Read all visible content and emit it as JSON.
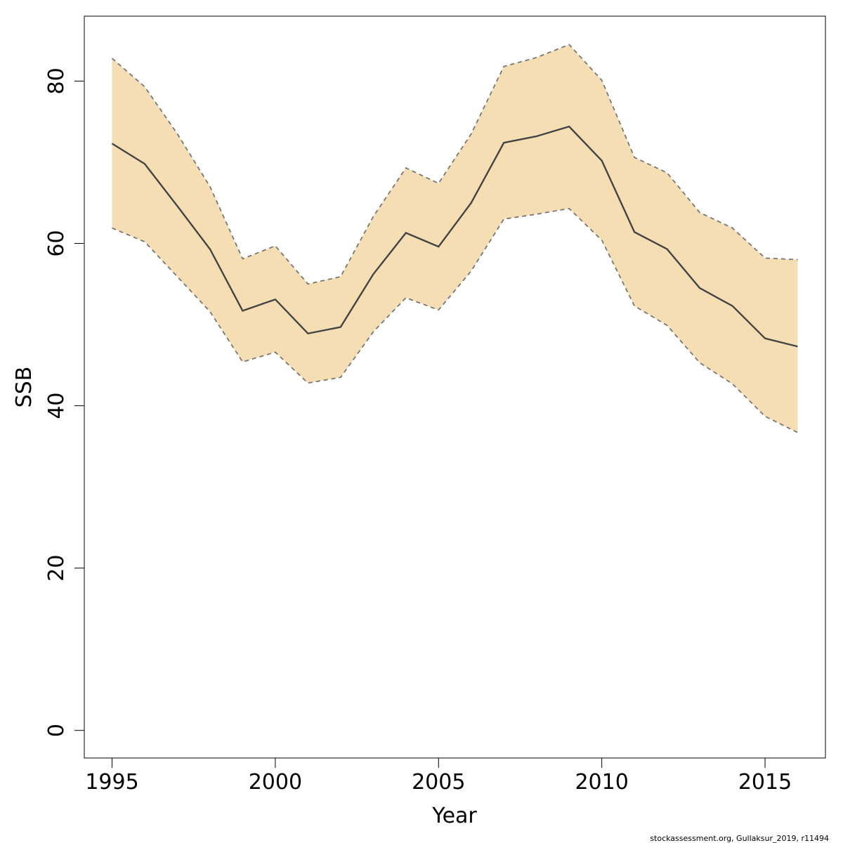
{
  "chart_data": {
    "type": "line",
    "xlabel": "Year",
    "ylabel": "SSB",
    "xlim": [
      1994.15,
      2016.85
    ],
    "ylim": [
      -3.4,
      88.0
    ],
    "x_ticks": [
      1995,
      2000,
      2005,
      2010,
      2015
    ],
    "y_ticks": [
      0,
      20,
      40,
      60,
      80
    ],
    "grid": false,
    "band_color": "#F5DEB3",
    "line_color": "#444444",
    "bound_color": "#777777",
    "x": [
      1995,
      1996,
      1997,
      1998,
      1999,
      2000,
      2001,
      2002,
      2003,
      2004,
      2005,
      2006,
      2007,
      2008,
      2009,
      2010,
      2011,
      2012,
      2013,
      2014,
      2015,
      2016
    ],
    "series": [
      {
        "values": [
          72.3,
          69.8,
          64.6,
          59.3,
          51.7,
          53.1,
          48.9,
          49.7,
          56.2,
          61.3,
          59.6,
          65.0,
          72.4,
          73.2,
          74.4,
          70.2,
          61.4,
          59.3,
          54.5,
          52.3,
          48.3,
          47.3
        ]
      },
      {
        "values": [
          82.8,
          79.3,
          73.5,
          67.0,
          58.1,
          59.7,
          55.0,
          55.9,
          63.3,
          69.3,
          67.4,
          73.5,
          81.8,
          82.9,
          84.5,
          80.1,
          70.6,
          68.7,
          63.8,
          61.9,
          58.2,
          58.0
        ]
      },
      {
        "values": [
          61.9,
          60.2,
          55.9,
          51.6,
          45.4,
          46.6,
          42.8,
          43.5,
          49.1,
          53.3,
          51.8,
          56.6,
          63.0,
          63.6,
          64.3,
          60.4,
          52.3,
          49.9,
          45.3,
          42.7,
          38.7,
          36.7
        ]
      }
    ]
  },
  "footer": {
    "credit": "stockassessment.org, Gullaksur_2019, r11494"
  }
}
